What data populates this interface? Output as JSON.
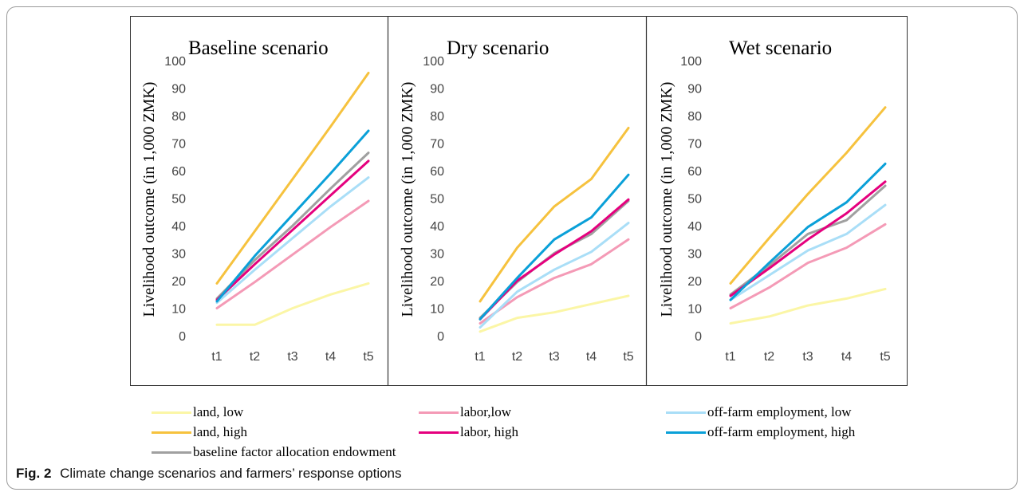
{
  "chart_data": [
    {
      "type": "line",
      "title": "Baseline scenario",
      "ylabel": "Livelihood outcome (in 1,000 ZMK)",
      "categories": [
        "t1",
        "t2",
        "t3",
        "t4",
        "t5"
      ],
      "ylim": [
        0,
        100
      ],
      "yticks": [
        0,
        10,
        20,
        30,
        40,
        50,
        60,
        70,
        80,
        90,
        100
      ],
      "series": [
        {
          "name": "land, low",
          "color": "#fbf6a6",
          "values": [
            4,
            4,
            10,
            15,
            19
          ]
        },
        {
          "name": "labor,low",
          "color": "#f49ab6",
          "values": [
            10,
            19.5,
            29.5,
            39.5,
            49
          ]
        },
        {
          "name": "off-farm employment, low",
          "color": "#a9def7",
          "values": [
            12,
            24,
            35.5,
            47,
            57.5
          ]
        },
        {
          "name": "baseline factor allocation endowment",
          "color": "#a0a0a0",
          "values": [
            13.5,
            27.5,
            40,
            53.5,
            66.5
          ]
        },
        {
          "name": "labor, high",
          "color": "#e5007e",
          "values": [
            13,
            26,
            38.5,
            51,
            63.5
          ]
        },
        {
          "name": "off-farm employment, high",
          "color": "#0aa0d8",
          "values": [
            12.5,
            29,
            44,
            59,
            74.5
          ]
        },
        {
          "name": "land, high",
          "color": "#f6c23e",
          "values": [
            19,
            38,
            57,
            76,
            95.5
          ]
        }
      ]
    },
    {
      "type": "line",
      "title": "Dry scenario",
      "ylabel": "Livelihood outcome (in 1,000 ZMK)",
      "categories": [
        "t1",
        "t2",
        "t3",
        "t4",
        "t5"
      ],
      "ylim": [
        0,
        100
      ],
      "yticks": [
        0,
        10,
        20,
        30,
        40,
        50,
        60,
        70,
        80,
        90,
        100
      ],
      "series": [
        {
          "name": "land, low",
          "color": "#fbf6a6",
          "values": [
            1.5,
            6.5,
            8.5,
            11.5,
            14.5
          ]
        },
        {
          "name": "labor,low",
          "color": "#f49ab6",
          "values": [
            4.5,
            14,
            21,
            26,
            35
          ]
        },
        {
          "name": "off-farm employment, low",
          "color": "#a9def7",
          "values": [
            3,
            16,
            24,
            30.5,
            41
          ]
        },
        {
          "name": "baseline factor allocation endowment",
          "color": "#a0a0a0",
          "values": [
            6.5,
            19.5,
            30,
            37,
            49
          ]
        },
        {
          "name": "labor, high",
          "color": "#e5007e",
          "values": [
            6,
            20,
            29.5,
            38,
            49.5
          ]
        },
        {
          "name": "off-farm employment, high",
          "color": "#0aa0d8",
          "values": [
            6,
            21,
            35,
            43,
            58.5
          ]
        },
        {
          "name": "land, high",
          "color": "#f6c23e",
          "values": [
            12.5,
            32,
            47,
            57,
            75.5
          ]
        }
      ]
    },
    {
      "type": "line",
      "title": "Wet scenario",
      "ylabel": "Livelihood outcome (in 1,000 ZMK)",
      "categories": [
        "t1",
        "t2",
        "t3",
        "t4",
        "t5"
      ],
      "ylim": [
        0,
        100
      ],
      "yticks": [
        0,
        10,
        20,
        30,
        40,
        50,
        60,
        70,
        80,
        90,
        100
      ],
      "series": [
        {
          "name": "land, low",
          "color": "#fbf6a6",
          "values": [
            4.5,
            7,
            11,
            13.5,
            17
          ]
        },
        {
          "name": "labor,low",
          "color": "#f49ab6",
          "values": [
            10,
            17.5,
            26.5,
            32,
            40.5
          ]
        },
        {
          "name": "off-farm employment, low",
          "color": "#a9def7",
          "values": [
            13,
            22,
            31,
            37,
            47.5
          ]
        },
        {
          "name": "baseline factor allocation endowment",
          "color": "#a0a0a0",
          "values": [
            15,
            25.5,
            37,
            42,
            54.5
          ]
        },
        {
          "name": "labor, high",
          "color": "#e5007e",
          "values": [
            14.5,
            24.5,
            35,
            44.5,
            56
          ]
        },
        {
          "name": "off-farm employment, high",
          "color": "#0aa0d8",
          "values": [
            13,
            26.5,
            39.5,
            48.5,
            62.5
          ]
        },
        {
          "name": "land, high",
          "color": "#f6c23e",
          "values": [
            19,
            35.5,
            51.5,
            66.5,
            83
          ]
        }
      ]
    }
  ],
  "legend": [
    {
      "label": "land, low",
      "color": "#fbf6a6"
    },
    {
      "label": "labor,low",
      "color": "#f49ab6"
    },
    {
      "label": "off-farm employment, low",
      "color": "#a9def7"
    },
    {
      "label": "land, high",
      "color": "#f6c23e"
    },
    {
      "label": "labor, high",
      "color": "#e5007e"
    },
    {
      "label": "off-farm employment, high",
      "color": "#0aa0d8"
    },
    {
      "label": "baseline factor allocation endowment",
      "color": "#a0a0a0"
    }
  ],
  "caption": {
    "label": "Fig. 2",
    "text": "Climate change scenarios and farmers’ response options"
  }
}
